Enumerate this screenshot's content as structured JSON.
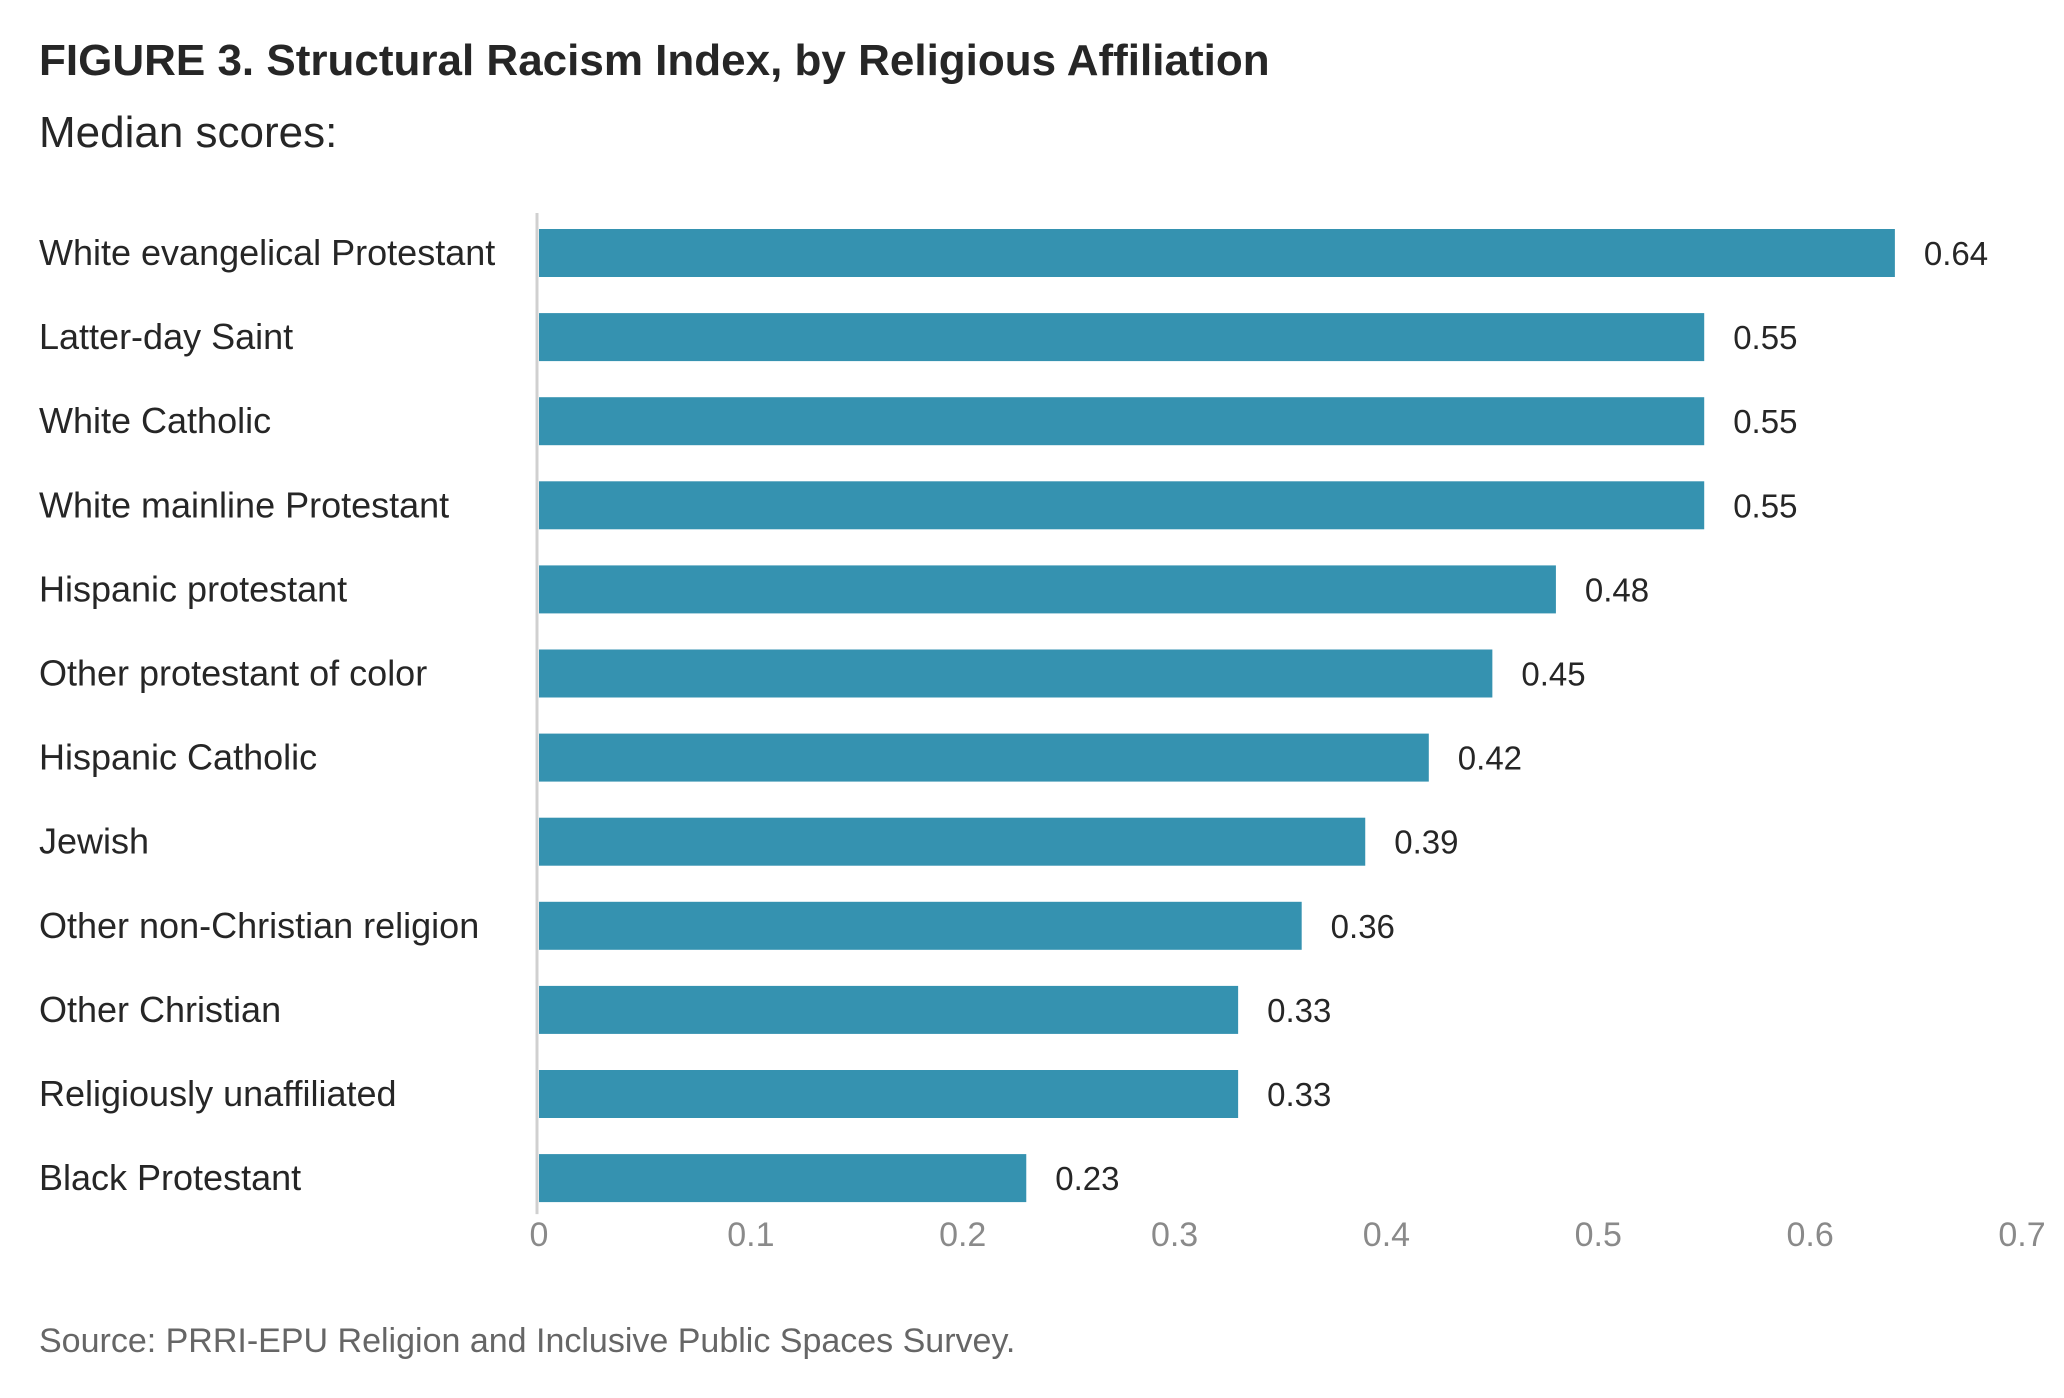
{
  "header": {
    "title": "FIGURE 3. Structural Racism Index, by Religious Affiliation",
    "subtitle": "Median scores:"
  },
  "footer": {
    "source": "Source: PRRI-EPU Religion and Inclusive Public Spaces Survey."
  },
  "chart_data": {
    "type": "bar",
    "orientation": "horizontal",
    "title": "FIGURE 3. Structural Racism Index, by Religious Affiliation",
    "subtitle": "Median scores:",
    "categories": [
      "White evangelical Protestant",
      "Latter-day Saint",
      "White Catholic",
      "White mainline Protestant",
      "Hispanic protestant",
      "Other protestant of color",
      "Hispanic Catholic",
      "Jewish",
      "Other non-Christian religion",
      "Other Christian",
      "Religiously unaffiliated",
      "Black Protestant"
    ],
    "values": [
      0.64,
      0.55,
      0.55,
      0.55,
      0.48,
      0.45,
      0.42,
      0.39,
      0.36,
      0.33,
      0.33,
      0.23
    ],
    "value_labels": [
      "0.64",
      "0.55",
      "0.55",
      "0.55",
      "0.48",
      "0.45",
      "0.42",
      "0.39",
      "0.36",
      "0.33",
      "0.33",
      "0.23"
    ],
    "xlim": [
      0,
      0.7
    ],
    "xticks": [
      0,
      0.1,
      0.2,
      0.3,
      0.4,
      0.5,
      0.6,
      0.7
    ],
    "xtick_labels": [
      "0",
      "0.1",
      "0.2",
      "0.3",
      "0.4",
      "0.5",
      "0.6",
      "0.7"
    ],
    "xlabel": "",
    "ylabel": "",
    "grid": false,
    "legend": "none",
    "colors": {
      "bar": "#3592b0",
      "axis": "#d0d0d0",
      "tick_text": "#8a8a8a",
      "text": "#262626"
    }
  }
}
